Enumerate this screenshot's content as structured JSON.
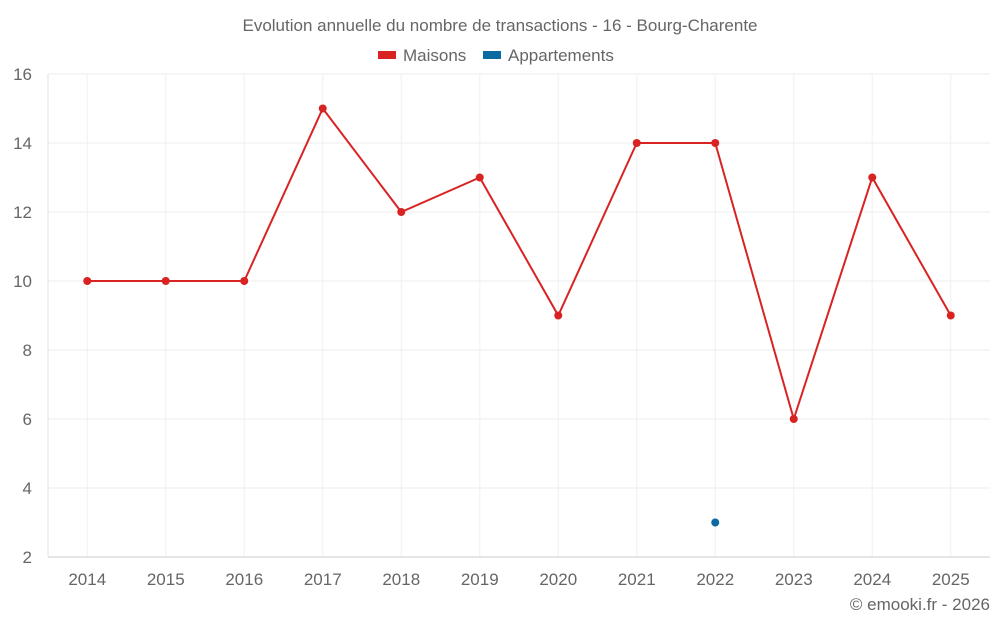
{
  "chart_data": {
    "type": "line",
    "title": "Evolution annuelle du nombre de transactions - 16 - Bourg-Charente",
    "categories": [
      "2014",
      "2015",
      "2016",
      "2017",
      "2018",
      "2019",
      "2020",
      "2021",
      "2022",
      "2023",
      "2024",
      "2025"
    ],
    "series": [
      {
        "name": "Maisons",
        "color": "#d92323",
        "values": [
          10,
          10,
          10,
          15,
          12,
          13,
          9,
          14,
          14,
          6,
          13,
          9
        ]
      },
      {
        "name": "Appartements",
        "color": "#0a6aa1",
        "values": [
          null,
          null,
          null,
          null,
          null,
          null,
          null,
          null,
          3,
          null,
          null,
          null
        ]
      }
    ],
    "ylim": [
      2,
      16
    ],
    "yticks": [
      2,
      4,
      6,
      8,
      10,
      12,
      14,
      16
    ],
    "grid": true,
    "legend": "top-center",
    "xlabel": "",
    "ylabel": ""
  },
  "credit": "© emooki.fr - 2026"
}
